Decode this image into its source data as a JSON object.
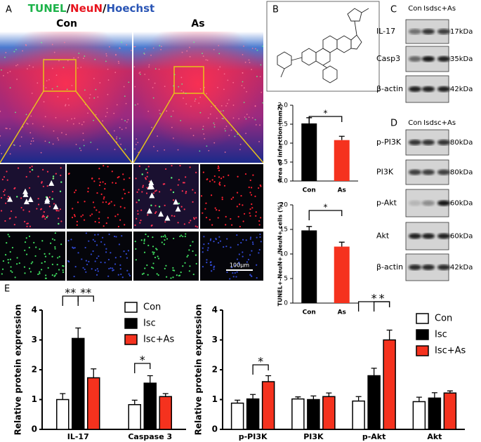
{
  "panel_labels": [
    "A",
    "B",
    "C",
    "D",
    "E"
  ],
  "panel_a": {
    "title_parts": [
      "TUNEL",
      "/",
      "NeuN",
      "/",
      "Hoechst"
    ],
    "columns": [
      "Con",
      "As"
    ],
    "scale_bar": "100μm"
  },
  "panel_c": {
    "lanes": [
      "Con",
      "Isc",
      "Isc+As"
    ],
    "rows": [
      {
        "label": "IL-17",
        "size": "17kDa"
      },
      {
        "label": "Casp3",
        "size": "35kDa"
      },
      {
        "label": "β-actin",
        "size": "42kDa"
      }
    ]
  },
  "panel_d": {
    "lanes": [
      "Con",
      "Isc",
      "Isc+As"
    ],
    "rows": [
      {
        "label": "p-PI3K",
        "size": "80kDa"
      },
      {
        "label": "PI3K",
        "size": "80kDa"
      },
      {
        "label": "p-Akt",
        "size": "60kDa"
      },
      {
        "label": "Akt",
        "size": "60kDa"
      },
      {
        "label": "β-actin",
        "size": "42kDa"
      }
    ]
  },
  "chart_data": [
    {
      "type": "bar",
      "ylabel": "Area of infarction (mm2)",
      "categories": [
        "Con",
        "As"
      ],
      "values": [
        1.52,
        1.08
      ],
      "errors": [
        0.15,
        0.1
      ],
      "colors": [
        "#000000",
        "#f5321e"
      ],
      "ylim": [
        0,
        2
      ],
      "yticks": [
        {
          "value": 0,
          "label": "0.0"
        },
        0.5,
        {
          "value": 1,
          "label": "1.0"
        },
        1.5,
        {
          "value": 2,
          "label": "2.0"
        }
      ],
      "annotations": [
        "*"
      ]
    },
    {
      "type": "bar",
      "ylabel": "TUNEL+-NeuN+ /NeuN+ cells (%)",
      "categories": [
        "Con",
        "As"
      ],
      "values": [
        14.8,
        11.5
      ],
      "errors": [
        0.8,
        0.9
      ],
      "colors": [
        "#000000",
        "#f5321e"
      ],
      "ylim": [
        0,
        20
      ],
      "yticks": [
        0,
        5,
        10,
        15,
        20
      ],
      "annotations": [
        "*"
      ]
    },
    {
      "type": "grouped_bar",
      "ylabel": "Relative protein expression",
      "categories": [
        "IL-17",
        "Caspase 3"
      ],
      "series": [
        {
          "name": "Con",
          "color": "#ffffff",
          "values": [
            1.0,
            0.83
          ],
          "errors": [
            0.2,
            0.15
          ]
        },
        {
          "name": "Isc",
          "color": "#000000",
          "values": [
            3.05,
            1.55
          ],
          "errors": [
            0.35,
            0.25
          ]
        },
        {
          "name": "Isc+As",
          "color": "#f5321e",
          "values": [
            1.73,
            1.1
          ],
          "errors": [
            0.3,
            0.1
          ]
        }
      ],
      "ylim": [
        0,
        4
      ],
      "yticks": [
        0,
        1,
        2,
        3,
        4
      ],
      "annotations": [
        "**",
        "**",
        "*"
      ]
    },
    {
      "type": "grouped_bar",
      "ylabel": "Relative protein expression",
      "categories": [
        "p-PI3K",
        "PI3K",
        "p-Akt",
        "Akt"
      ],
      "series": [
        {
          "name": "Con",
          "color": "#ffffff",
          "values": [
            0.88,
            1.02,
            0.95,
            0.93
          ],
          "errors": [
            0.1,
            0.07,
            0.15,
            0.15
          ]
        },
        {
          "name": "Isc",
          "color": "#000000",
          "values": [
            1.02,
            1.0,
            1.8,
            1.05
          ],
          "errors": [
            0.15,
            0.12,
            0.25,
            0.18
          ]
        },
        {
          "name": "Isc+As",
          "color": "#f5321e",
          "values": [
            1.6,
            1.1,
            3.0,
            1.22
          ],
          "errors": [
            0.2,
            0.12,
            0.33,
            0.07
          ]
        }
      ],
      "ylim": [
        0,
        4
      ],
      "yticks": [
        0,
        1,
        2,
        3,
        4
      ],
      "annotations": [
        "*",
        "*",
        "*"
      ]
    }
  ]
}
